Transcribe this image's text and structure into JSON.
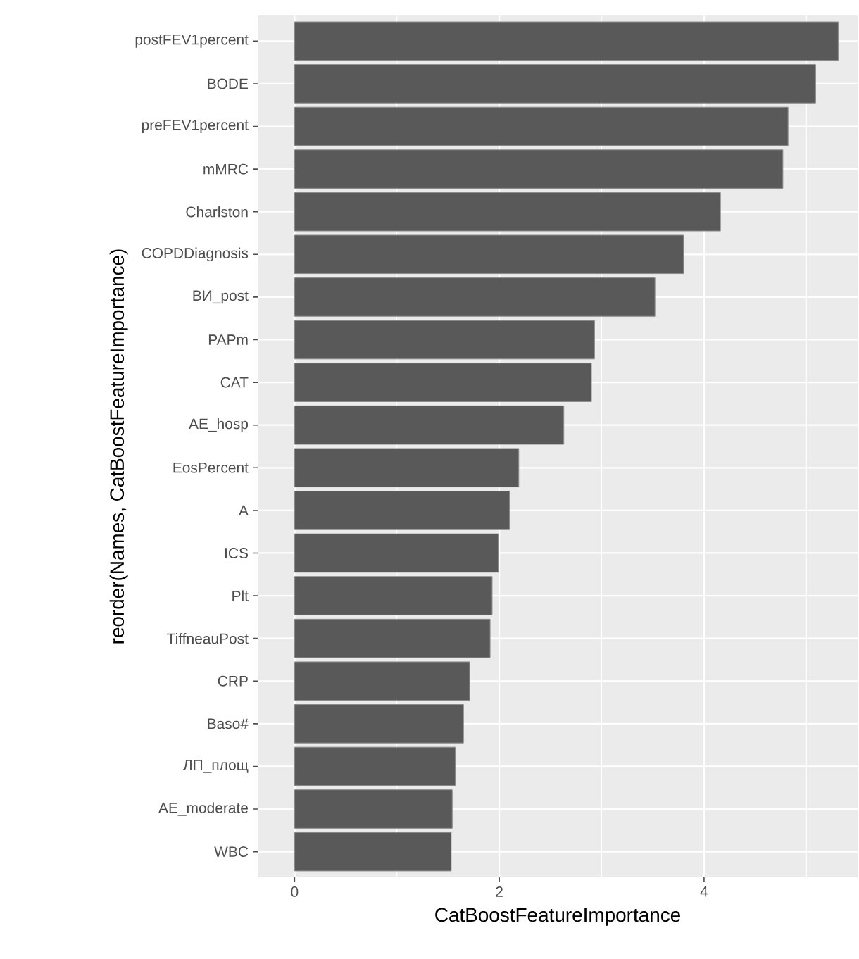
{
  "chart_data": {
    "type": "bar",
    "orientation": "horizontal",
    "xlabel": "CatBoostFeatureImportance",
    "ylabel": "reorder(Names, CatBoostFeatureImportance)",
    "categories": [
      "postFEV1percent",
      "BODE",
      "preFEV1percent",
      "mMRC",
      "Charlston",
      "COPDDiagnosis",
      "ВИ_post",
      "PAPm",
      "CAT",
      "AE_hosp",
      "EosPercent",
      "A",
      "ICS",
      "Plt",
      "TiffneauPost",
      "CRP",
      "Baso#",
      "ЛП_площ",
      "AE_moderate",
      "WBC"
    ],
    "values": [
      5.31,
      5.09,
      4.82,
      4.77,
      4.16,
      3.8,
      3.52,
      2.93,
      2.9,
      2.63,
      2.19,
      2.1,
      1.99,
      1.93,
      1.91,
      1.71,
      1.65,
      1.57,
      1.54,
      1.53
    ],
    "color": "#595959",
    "xlim": [
      -0.36,
      5.5
    ],
    "xticks": [
      0,
      {
        "value": 1,
        "label": null
      },
      2,
      {
        "value": 3,
        "label": null
      },
      4,
      {
        "value": 5,
        "label": null
      }
    ],
    "grid": true
  }
}
